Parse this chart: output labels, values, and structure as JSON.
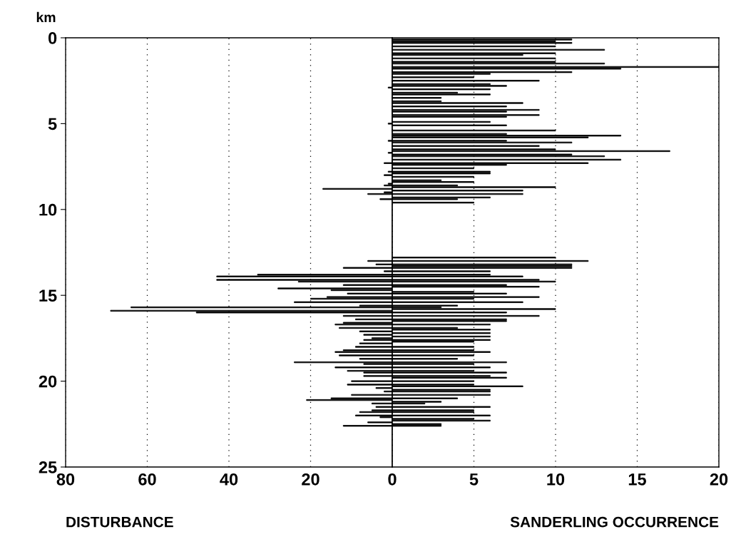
{
  "chart_data": [
    {
      "type": "bar",
      "orientation": "horizontal",
      "xlabel": "DISTURBANCE",
      "ylabel": "km",
      "color": "#000000",
      "x": [
        2.9,
        5.0,
        6.0,
        6.7,
        7.3,
        7.8,
        8.0,
        8.5,
        8.6,
        8.8,
        9.0,
        9.1,
        9.4,
        13.0,
        13.2,
        13.4,
        13.6,
        13.8,
        13.9,
        14.1,
        14.2,
        14.4,
        14.6,
        14.7,
        14.9,
        15.1,
        15.2,
        15.4,
        15.6,
        15.7,
        15.9,
        16.0,
        16.2,
        16.4,
        16.6,
        16.7,
        16.9,
        17.1,
        17.3,
        17.5,
        17.6,
        17.8,
        18.0,
        18.2,
        18.3,
        18.5,
        18.7,
        18.9,
        19.0,
        19.2,
        19.4,
        19.5,
        19.7,
        20.0,
        20.2,
        20.4,
        20.6,
        20.8,
        21.0,
        21.1,
        21.3,
        21.5,
        21.7,
        21.8,
        22.0,
        22.1,
        22.4,
        22.6
      ],
      "values": [
        1,
        1,
        1,
        1,
        2,
        1,
        2,
        1,
        2,
        17,
        2,
        6,
        3,
        6,
        4,
        12,
        2,
        33,
        43,
        43,
        23,
        12,
        28,
        15,
        11,
        16,
        20,
        24,
        8,
        64,
        69,
        48,
        12,
        9,
        12,
        14,
        13,
        8,
        7,
        5,
        7,
        8,
        9,
        12,
        14,
        13,
        8,
        24,
        7,
        14,
        11,
        7,
        7,
        10,
        11,
        4,
        2,
        10,
        15,
        21,
        5,
        4,
        5,
        8,
        9,
        3,
        6,
        12
      ],
      "xlim": [
        80,
        0
      ],
      "xticks": [
        80,
        60,
        40,
        20,
        0
      ],
      "ylim": [
        25,
        0
      ],
      "yticks": [
        0,
        5,
        10,
        15,
        20,
        25
      ],
      "grid": "x"
    },
    {
      "type": "bar",
      "orientation": "horizontal",
      "xlabel": "SANDERLING OCCURRENCE",
      "color": "#000000",
      "x": [
        0.1,
        0.2,
        0.3,
        0.5,
        0.7,
        0.9,
        1.0,
        1.2,
        1.4,
        1.5,
        1.7,
        1.8,
        2.0,
        2.1,
        2.3,
        2.5,
        2.7,
        2.8,
        3.0,
        3.2,
        3.3,
        3.5,
        3.7,
        3.8,
        4.0,
        4.2,
        4.3,
        4.5,
        4.6,
        4.9,
        5.1,
        5.4,
        5.6,
        5.7,
        5.8,
        6.0,
        6.1,
        6.3,
        6.5,
        6.6,
        6.8,
        6.9,
        7.1,
        7.3,
        7.4,
        7.6,
        7.8,
        7.9,
        8.1,
        8.3,
        8.4,
        8.6,
        8.7,
        8.9,
        9.1,
        9.3,
        9.4,
        9.6,
        12.8,
        13.0,
        13.2,
        13.3,
        13.4,
        13.6,
        13.8,
        13.9,
        14.1,
        14.2,
        14.4,
        14.5,
        14.8,
        14.9,
        15.1,
        15.2,
        15.4,
        15.6,
        15.7,
        15.8,
        16.0,
        16.2,
        16.4,
        16.5,
        16.7,
        16.9,
        17.0,
        17.2,
        17.4,
        17.6,
        17.7,
        18.0,
        18.2,
        18.3,
        18.5,
        18.7,
        18.9,
        19.0,
        19.2,
        19.4,
        19.5,
        19.7,
        19.8,
        20.0,
        20.2,
        20.3,
        20.5,
        20.6,
        20.8,
        21.0,
        21.2,
        21.3,
        21.5,
        21.7,
        21.8,
        22.0,
        22.2,
        22.3,
        22.5,
        22.6
      ],
      "values": [
        11,
        10,
        11,
        10,
        13,
        10,
        8,
        10,
        10,
        13,
        20,
        14,
        11,
        6,
        5,
        9,
        6,
        7,
        6,
        4,
        6,
        3,
        3,
        8,
        7,
        9,
        7,
        9,
        7,
        6,
        7,
        10,
        7,
        14,
        12,
        7,
        11,
        9,
        10,
        17,
        11,
        13,
        14,
        12,
        7,
        5,
        6,
        6,
        5,
        3,
        5,
        4,
        10,
        8,
        8,
        6,
        4,
        5,
        10,
        12,
        11,
        11,
        11,
        6,
        6,
        8,
        9,
        10,
        7,
        9,
        5,
        7,
        9,
        5,
        8,
        4,
        3,
        10,
        7,
        9,
        7,
        7,
        6,
        4,
        6,
        6,
        6,
        6,
        5,
        5,
        5,
        6,
        5,
        4,
        7,
        5,
        6,
        5,
        7,
        6,
        7,
        5,
        5,
        8,
        6,
        6,
        6,
        4,
        3,
        2,
        6,
        5,
        5,
        6,
        5,
        6,
        3,
        3
      ],
      "xlim": [
        0,
        20
      ],
      "xticks": [
        {
          "value": 0,
          "label": null
        },
        5,
        10,
        15,
        20
      ],
      "ylim": [
        25,
        0
      ],
      "yticks": [
        0,
        5,
        10,
        15,
        20,
        25
      ],
      "grid": "x",
      "tick_labels": "x"
    }
  ]
}
